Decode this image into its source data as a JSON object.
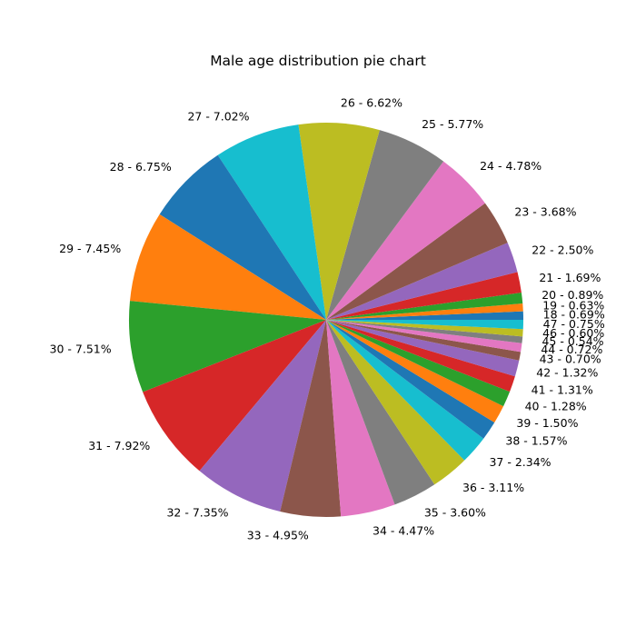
{
  "chart_data": {
    "type": "pie",
    "title": "Male age distribution pie chart",
    "start_angle_deg": 0,
    "direction": "counterclockwise",
    "slices": [
      {
        "label": "18",
        "value": 0.69,
        "color": "#1f77b4"
      },
      {
        "label": "19",
        "value": 0.63,
        "color": "#ff7f0e"
      },
      {
        "label": "20",
        "value": 0.89,
        "color": "#2ca02c"
      },
      {
        "label": "21",
        "value": 1.69,
        "color": "#d62728"
      },
      {
        "label": "22",
        "value": 2.5,
        "color": "#9467bd"
      },
      {
        "label": "23",
        "value": 3.68,
        "color": "#8c564b"
      },
      {
        "label": "24",
        "value": 4.78,
        "color": "#e377c2"
      },
      {
        "label": "25",
        "value": 5.77,
        "color": "#7f7f7f"
      },
      {
        "label": "26",
        "value": 6.62,
        "color": "#bcbd22"
      },
      {
        "label": "27",
        "value": 7.02,
        "color": "#17becf"
      },
      {
        "label": "28",
        "value": 6.75,
        "color": "#1f77b4"
      },
      {
        "label": "29",
        "value": 7.45,
        "color": "#ff7f0e"
      },
      {
        "label": "30",
        "value": 7.51,
        "color": "#2ca02c"
      },
      {
        "label": "31",
        "value": 7.92,
        "color": "#d62728"
      },
      {
        "label": "32",
        "value": 7.35,
        "color": "#9467bd"
      },
      {
        "label": "33",
        "value": 4.95,
        "color": "#8c564b"
      },
      {
        "label": "34",
        "value": 4.47,
        "color": "#e377c2"
      },
      {
        "label": "35",
        "value": 3.6,
        "color": "#7f7f7f"
      },
      {
        "label": "36",
        "value": 3.11,
        "color": "#bcbd22"
      },
      {
        "label": "37",
        "value": 2.34,
        "color": "#17becf"
      },
      {
        "label": "38",
        "value": 1.57,
        "color": "#1f77b4"
      },
      {
        "label": "39",
        "value": 1.5,
        "color": "#ff7f0e"
      },
      {
        "label": "40",
        "value": 1.28,
        "color": "#2ca02c"
      },
      {
        "label": "41",
        "value": 1.31,
        "color": "#d62728"
      },
      {
        "label": "42",
        "value": 1.32,
        "color": "#9467bd"
      },
      {
        "label": "43",
        "value": 0.7,
        "color": "#8c564b"
      },
      {
        "label": "44",
        "value": 0.72,
        "color": "#e377c2"
      },
      {
        "label": "45",
        "value": 0.54,
        "color": "#7f7f7f"
      },
      {
        "label": "46",
        "value": 0.6,
        "color": "#bcbd22"
      },
      {
        "label": "47",
        "value": 0.75,
        "color": "#17becf"
      }
    ]
  }
}
